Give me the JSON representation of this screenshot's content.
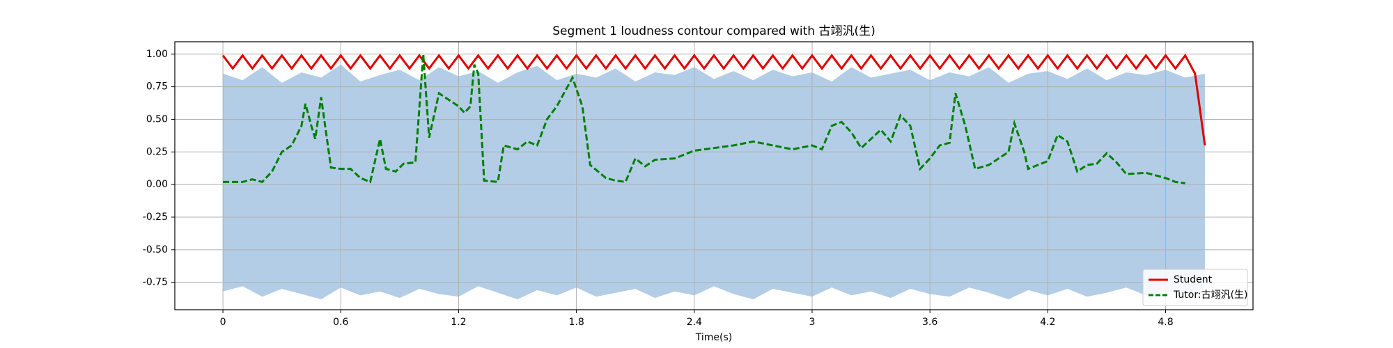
{
  "chart_data": {
    "type": "line",
    "title": "Segment 1 loudness contour compared with 古翊汎(生)",
    "xlabel": "Time(s)",
    "xlim": [
      -0.245,
      5.245
    ],
    "ylim": [
      -0.96,
      1.095
    ],
    "xticks": [
      0,
      0.6,
      1.2,
      1.8,
      2.4,
      3,
      3.6,
      4.2,
      4.8
    ],
    "yticks": [
      {
        "value": 1.0,
        "label": "1.00"
      },
      {
        "value": 0.75,
        "label": "0.75"
      },
      {
        "value": 0.5,
        "label": "0.50"
      },
      {
        "value": 0.25,
        "label": "0.25"
      },
      {
        "value": 0.0,
        "label": "0.00"
      },
      {
        "value": -0.25,
        "label": "-0.25"
      },
      {
        "value": -0.5,
        "label": "-0.50"
      },
      {
        "value": -0.75,
        "label": "-0.75"
      }
    ],
    "grid": true,
    "legend": "lower right",
    "waveform": {
      "color": "#b3cde6",
      "x": [
        0,
        0.1,
        0.2,
        0.3,
        0.4,
        0.5,
        0.6,
        0.7,
        0.8,
        0.9,
        1.0,
        1.1,
        1.2,
        1.3,
        1.4,
        1.5,
        1.6,
        1.7,
        1.8,
        1.9,
        2.0,
        2.1,
        2.2,
        2.3,
        2.4,
        2.5,
        2.6,
        2.7,
        2.8,
        2.9,
        3.0,
        3.1,
        3.2,
        3.3,
        3.4,
        3.5,
        3.6,
        3.7,
        3.8,
        3.9,
        4.0,
        4.1,
        4.2,
        4.3,
        4.4,
        4.5,
        4.6,
        4.7,
        4.8,
        4.9,
        5.0
      ],
      "upper": [
        0.85,
        0.8,
        0.9,
        0.78,
        0.86,
        0.82,
        0.92,
        0.79,
        0.84,
        0.88,
        0.8,
        0.9,
        0.83,
        0.87,
        0.78,
        0.86,
        0.91,
        0.8,
        0.85,
        0.82,
        0.89,
        0.79,
        0.86,
        0.84,
        0.9,
        0.81,
        0.87,
        0.8,
        0.88,
        0.83,
        0.86,
        0.79,
        0.9,
        0.82,
        0.85,
        0.88,
        0.8,
        0.86,
        0.83,
        0.9,
        0.78,
        0.85,
        0.87,
        0.81,
        0.89,
        0.8,
        0.86,
        0.84,
        0.88,
        0.82,
        0.85
      ],
      "lower": [
        -0.82,
        -0.78,
        -0.86,
        -0.8,
        -0.84,
        -0.88,
        -0.79,
        -0.85,
        -0.82,
        -0.87,
        -0.8,
        -0.84,
        -0.86,
        -0.78,
        -0.83,
        -0.88,
        -0.81,
        -0.85,
        -0.79,
        -0.86,
        -0.83,
        -0.8,
        -0.87,
        -0.82,
        -0.85,
        -0.78,
        -0.84,
        -0.88,
        -0.8,
        -0.83,
        -0.86,
        -0.79,
        -0.85,
        -0.82,
        -0.87,
        -0.8,
        -0.84,
        -0.86,
        -0.79,
        -0.83,
        -0.88,
        -0.81,
        -0.85,
        -0.8,
        -0.86,
        -0.83,
        -0.79,
        -0.85,
        -0.82,
        -0.84,
        -0.8
      ]
    },
    "series": [
      {
        "name": "Student",
        "color": "#e00000",
        "linestyle": "solid",
        "x": [
          0,
          0.05,
          0.1,
          0.15,
          0.2,
          0.25,
          0.3,
          0.35,
          0.4,
          0.45,
          0.5,
          0.55,
          0.6,
          0.65,
          0.7,
          0.75,
          0.8,
          0.85,
          0.9,
          0.95,
          1.0,
          1.05,
          1.1,
          1.15,
          1.2,
          1.25,
          1.3,
          1.35,
          1.4,
          1.45,
          1.5,
          1.55,
          1.6,
          1.65,
          1.7,
          1.75,
          1.8,
          1.85,
          1.9,
          1.95,
          2.0,
          2.05,
          2.1,
          2.15,
          2.2,
          2.25,
          2.3,
          2.35,
          2.4,
          2.45,
          2.5,
          2.55,
          2.6,
          2.65,
          2.7,
          2.75,
          2.8,
          2.85,
          2.9,
          2.95,
          3.0,
          3.05,
          3.1,
          3.15,
          3.2,
          3.25,
          3.3,
          3.35,
          3.4,
          3.45,
          3.5,
          3.55,
          3.6,
          3.65,
          3.7,
          3.75,
          3.8,
          3.85,
          3.9,
          3.95,
          4.0,
          4.05,
          4.1,
          4.15,
          4.2,
          4.25,
          4.3,
          4.35,
          4.4,
          4.45,
          4.5,
          4.55,
          4.6,
          4.65,
          4.7,
          4.75,
          4.8,
          4.85,
          4.9,
          4.95,
          5.0
        ],
        "values": [
          0.99,
          0.89,
          0.99,
          0.89,
          0.99,
          0.89,
          0.99,
          0.89,
          0.99,
          0.89,
          0.99,
          0.89,
          0.99,
          0.89,
          0.99,
          0.89,
          0.99,
          0.89,
          0.99,
          0.89,
          0.99,
          0.89,
          0.99,
          0.89,
          0.99,
          0.89,
          0.99,
          0.89,
          0.99,
          0.89,
          0.99,
          0.89,
          0.99,
          0.89,
          0.99,
          0.89,
          0.99,
          0.89,
          0.99,
          0.89,
          0.99,
          0.89,
          0.99,
          0.89,
          0.99,
          0.89,
          0.99,
          0.89,
          0.99,
          0.89,
          0.99,
          0.89,
          0.99,
          0.89,
          0.99,
          0.89,
          0.99,
          0.89,
          0.99,
          0.89,
          0.99,
          0.89,
          0.99,
          0.89,
          0.99,
          0.89,
          0.99,
          0.89,
          0.99,
          0.89,
          0.99,
          0.89,
          0.99,
          0.89,
          0.99,
          0.89,
          0.99,
          0.89,
          0.99,
          0.89,
          0.99,
          0.89,
          0.99,
          0.89,
          0.99,
          0.89,
          0.99,
          0.89,
          0.99,
          0.89,
          0.99,
          0.89,
          0.99,
          0.89,
          0.99,
          0.89,
          0.99,
          0.89,
          0.99,
          0.85,
          0.3
        ]
      },
      {
        "name": "Tutor:古翊汎(生)",
        "color": "#008000",
        "linestyle": "dashed",
        "x": [
          0,
          0.1,
          0.15,
          0.2,
          0.25,
          0.3,
          0.35,
          0.4,
          0.42,
          0.45,
          0.47,
          0.5,
          0.55,
          0.6,
          0.65,
          0.7,
          0.75,
          0.8,
          0.83,
          0.88,
          0.92,
          0.98,
          1.02,
          1.05,
          1.1,
          1.15,
          1.2,
          1.23,
          1.26,
          1.28,
          1.3,
          1.33,
          1.4,
          1.43,
          1.5,
          1.55,
          1.6,
          1.65,
          1.7,
          1.78,
          1.83,
          1.87,
          1.95,
          2.0,
          2.05,
          2.1,
          2.15,
          2.2,
          2.3,
          2.4,
          2.5,
          2.6,
          2.7,
          2.8,
          2.9,
          3.0,
          3.05,
          3.1,
          3.15,
          3.2,
          3.25,
          3.3,
          3.35,
          3.4,
          3.45,
          3.5,
          3.55,
          3.6,
          3.65,
          3.7,
          3.73,
          3.78,
          3.83,
          3.9,
          3.95,
          4.0,
          4.03,
          4.08,
          4.1,
          4.15,
          4.2,
          4.25,
          4.3,
          4.35,
          4.4,
          4.45,
          4.5,
          4.55,
          4.6,
          4.7,
          4.8,
          4.85,
          4.9
        ],
        "values": [
          0.02,
          0.02,
          0.04,
          0.02,
          0.1,
          0.25,
          0.3,
          0.45,
          0.62,
          0.45,
          0.35,
          0.67,
          0.13,
          0.12,
          0.12,
          0.05,
          0.02,
          0.35,
          0.12,
          0.1,
          0.16,
          0.17,
          1.0,
          0.36,
          0.7,
          0.65,
          0.6,
          0.55,
          0.6,
          0.92,
          0.85,
          0.03,
          0.02,
          0.3,
          0.27,
          0.33,
          0.3,
          0.5,
          0.6,
          0.82,
          0.6,
          0.15,
          0.05,
          0.03,
          0.02,
          0.2,
          0.14,
          0.19,
          0.2,
          0.26,
          0.28,
          0.3,
          0.33,
          0.3,
          0.27,
          0.3,
          0.27,
          0.45,
          0.48,
          0.4,
          0.28,
          0.35,
          0.42,
          0.33,
          0.53,
          0.45,
          0.12,
          0.2,
          0.3,
          0.32,
          0.7,
          0.45,
          0.12,
          0.15,
          0.2,
          0.25,
          0.47,
          0.25,
          0.12,
          0.15,
          0.18,
          0.38,
          0.33,
          0.1,
          0.15,
          0.16,
          0.24,
          0.17,
          0.08,
          0.09,
          0.05,
          0.02,
          0.01
        ]
      }
    ]
  }
}
